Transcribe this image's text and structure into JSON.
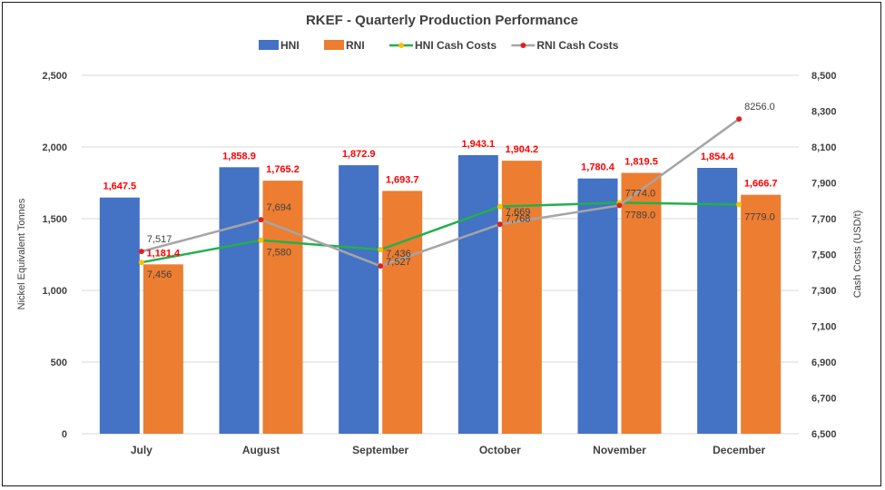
{
  "chart_data": {
    "type": "bar",
    "title": "RKEF - Quarterly Production Performance",
    "categories": [
      "July",
      "August",
      "September",
      "October",
      "November",
      "December"
    ],
    "ylabel": "Nickel Equivalent Tonnes",
    "y2label": "Cash Costs (USD/t)",
    "ylim": [
      0,
      2500
    ],
    "y2lim": [
      6500,
      8500
    ],
    "yticks": [
      "0",
      "500",
      "1,000",
      "1,500",
      "2,000",
      "2,500"
    ],
    "y2ticks": [
      "6,500",
      "6,700",
      "6,900",
      "7,100",
      "7,300",
      "7,500",
      "7,700",
      "7,900",
      "8,100",
      "8,300",
      "8,500"
    ],
    "legend": "top",
    "grid": true,
    "series": [
      {
        "name": "HNI",
        "kind": "bar",
        "axis": "left",
        "color": "#4472c4",
        "values": [
          1647.5,
          1858.9,
          1872.9,
          1943.1,
          1780.4,
          1854.4
        ],
        "labels": [
          "1,647.5",
          "1,858.9",
          "1,872.9",
          "1,943.1",
          "1,780.4",
          "1,854.4"
        ]
      },
      {
        "name": "RNI",
        "kind": "bar",
        "axis": "left",
        "color": "#ed7d31",
        "values": [
          1181.4,
          1765.2,
          1693.7,
          1904.2,
          1819.5,
          1666.7
        ],
        "labels": [
          "1,181.4",
          "1,765.2",
          "1,693.7",
          "1,904.2",
          "1,819.5",
          "1,666.7"
        ]
      },
      {
        "name": "HNI Cash Costs",
        "kind": "line",
        "axis": "right",
        "color": "#22b04b",
        "marker": "#ffc000",
        "values": [
          7456,
          7580,
          7527,
          7768,
          7789,
          7779
        ],
        "labels": [
          "7,456",
          "7,580",
          "7,527",
          "7,768",
          "7789.0",
          "7779.0"
        ]
      },
      {
        "name": "RNI Cash Costs",
        "kind": "line",
        "axis": "right",
        "color": "#a5a5a5",
        "marker": "#e0201b",
        "values": [
          7517,
          7694,
          7436,
          7669,
          7774,
          8256
        ],
        "labels": [
          "7,517",
          "7,694",
          "7,436",
          "7,669",
          "7774.0",
          "8256.0"
        ]
      }
    ]
  }
}
